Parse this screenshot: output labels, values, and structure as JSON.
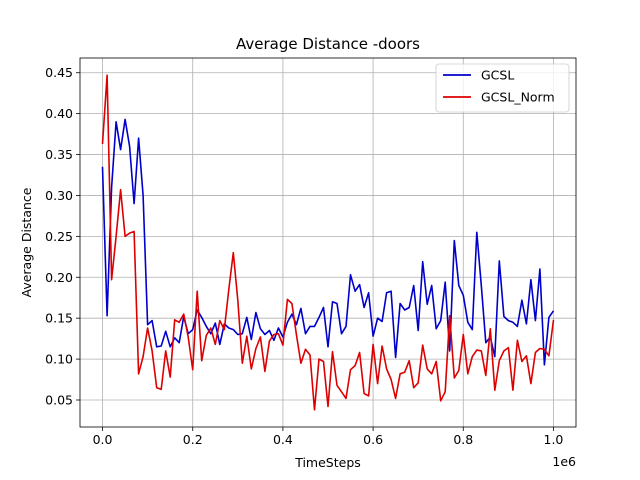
{
  "chart_data": {
    "type": "line",
    "title": "Average Distance -doors",
    "xlabel": "TimeSteps",
    "ylabel": "Average Distance",
    "x_scale_label": "1e6",
    "xlim": [
      -0.05,
      1.05
    ],
    "ylim": [
      0.017,
      0.468
    ],
    "xticks": [
      0.0,
      0.2,
      0.4,
      0.6,
      0.8,
      1.0
    ],
    "xtick_labels": [
      "0.0",
      "0.2",
      "0.4",
      "0.6",
      "0.8",
      "1.0"
    ],
    "yticks": [
      0.05,
      0.1,
      0.15,
      0.2,
      0.25,
      0.3,
      0.35,
      0.4,
      0.45
    ],
    "ytick_labels": [
      "0.05",
      "0.10",
      "0.15",
      "0.20",
      "0.25",
      "0.30",
      "0.35",
      "0.40",
      "0.45"
    ],
    "grid": true,
    "legend_position": "top-right",
    "series": [
      {
        "name": "GCSL",
        "color": "#0000cc",
        "points": [
          [
            0.0,
            0.335
          ],
          [
            0.01,
            0.153
          ],
          [
            0.02,
            0.31
          ],
          [
            0.03,
            0.39
          ],
          [
            0.04,
            0.356
          ],
          [
            0.05,
            0.393
          ],
          [
            0.06,
            0.36
          ],
          [
            0.07,
            0.29
          ],
          [
            0.08,
            0.37
          ],
          [
            0.09,
            0.3
          ],
          [
            0.1,
            0.142
          ],
          [
            0.11,
            0.147
          ],
          [
            0.12,
            0.115
          ],
          [
            0.13,
            0.116
          ],
          [
            0.14,
            0.134
          ],
          [
            0.15,
            0.115
          ],
          [
            0.16,
            0.126
          ],
          [
            0.17,
            0.12
          ],
          [
            0.18,
            0.152
          ],
          [
            0.19,
            0.131
          ],
          [
            0.2,
            0.136
          ],
          [
            0.21,
            0.16
          ],
          [
            0.22,
            0.151
          ],
          [
            0.23,
            0.14
          ],
          [
            0.24,
            0.131
          ],
          [
            0.25,
            0.144
          ],
          [
            0.26,
            0.118
          ],
          [
            0.27,
            0.143
          ],
          [
            0.28,
            0.138
          ],
          [
            0.29,
            0.136
          ],
          [
            0.3,
            0.13
          ],
          [
            0.31,
            0.131
          ],
          [
            0.32,
            0.151
          ],
          [
            0.33,
            0.124
          ],
          [
            0.34,
            0.157
          ],
          [
            0.35,
            0.137
          ],
          [
            0.36,
            0.13
          ],
          [
            0.37,
            0.135
          ],
          [
            0.38,
            0.123
          ],
          [
            0.39,
            0.138
          ],
          [
            0.4,
            0.127
          ],
          [
            0.41,
            0.145
          ],
          [
            0.42,
            0.155
          ],
          [
            0.43,
            0.142
          ],
          [
            0.44,
            0.162
          ],
          [
            0.45,
            0.131
          ],
          [
            0.46,
            0.14
          ],
          [
            0.47,
            0.14
          ],
          [
            0.48,
            0.151
          ],
          [
            0.49,
            0.163
          ],
          [
            0.5,
            0.115
          ],
          [
            0.51,
            0.17
          ],
          [
            0.52,
            0.168
          ],
          [
            0.53,
            0.131
          ],
          [
            0.54,
            0.14
          ],
          [
            0.55,
            0.203
          ],
          [
            0.56,
            0.183
          ],
          [
            0.57,
            0.191
          ],
          [
            0.58,
            0.163
          ],
          [
            0.59,
            0.181
          ],
          [
            0.6,
            0.128
          ],
          [
            0.61,
            0.15
          ],
          [
            0.62,
            0.146
          ],
          [
            0.63,
            0.181
          ],
          [
            0.64,
            0.183
          ],
          [
            0.65,
            0.102
          ],
          [
            0.66,
            0.168
          ],
          [
            0.67,
            0.16
          ],
          [
            0.68,
            0.163
          ],
          [
            0.69,
            0.19
          ],
          [
            0.7,
            0.135
          ],
          [
            0.71,
            0.219
          ],
          [
            0.72,
            0.167
          ],
          [
            0.73,
            0.19
          ],
          [
            0.74,
            0.137
          ],
          [
            0.75,
            0.147
          ],
          [
            0.76,
            0.194
          ],
          [
            0.77,
            0.11
          ],
          [
            0.78,
            0.245
          ],
          [
            0.79,
            0.19
          ],
          [
            0.8,
            0.178
          ],
          [
            0.81,
            0.145
          ],
          [
            0.82,
            0.136
          ],
          [
            0.83,
            0.255
          ],
          [
            0.84,
            0.19
          ],
          [
            0.85,
            0.12
          ],
          [
            0.86,
            0.127
          ],
          [
            0.87,
            0.103
          ],
          [
            0.88,
            0.22
          ],
          [
            0.89,
            0.152
          ],
          [
            0.9,
            0.147
          ],
          [
            0.91,
            0.145
          ],
          [
            0.92,
            0.14
          ],
          [
            0.93,
            0.172
          ],
          [
            0.94,
            0.143
          ],
          [
            0.95,
            0.197
          ],
          [
            0.96,
            0.147
          ],
          [
            0.97,
            0.21
          ],
          [
            0.98,
            0.093
          ],
          [
            0.99,
            0.151
          ],
          [
            1.0,
            0.159
          ]
        ]
      },
      {
        "name": "GCSL_Norm",
        "color": "#dd0000",
        "points": [
          [
            0.0,
            0.363
          ],
          [
            0.01,
            0.447
          ],
          [
            0.02,
            0.197
          ],
          [
            0.03,
            0.25
          ],
          [
            0.04,
            0.307
          ],
          [
            0.05,
            0.25
          ],
          [
            0.06,
            0.254
          ],
          [
            0.07,
            0.256
          ],
          [
            0.08,
            0.082
          ],
          [
            0.09,
            0.103
          ],
          [
            0.1,
            0.138
          ],
          [
            0.11,
            0.11
          ],
          [
            0.12,
            0.065
          ],
          [
            0.13,
            0.063
          ],
          [
            0.14,
            0.11
          ],
          [
            0.15,
            0.078
          ],
          [
            0.16,
            0.148
          ],
          [
            0.17,
            0.145
          ],
          [
            0.18,
            0.155
          ],
          [
            0.19,
            0.127
          ],
          [
            0.2,
            0.087
          ],
          [
            0.21,
            0.183
          ],
          [
            0.22,
            0.098
          ],
          [
            0.23,
            0.129
          ],
          [
            0.24,
            0.138
          ],
          [
            0.25,
            0.118
          ],
          [
            0.26,
            0.147
          ],
          [
            0.27,
            0.136
          ],
          [
            0.28,
            0.185
          ],
          [
            0.29,
            0.23
          ],
          [
            0.3,
            0.172
          ],
          [
            0.31,
            0.095
          ],
          [
            0.32,
            0.128
          ],
          [
            0.33,
            0.088
          ],
          [
            0.34,
            0.113
          ],
          [
            0.35,
            0.127
          ],
          [
            0.36,
            0.085
          ],
          [
            0.37,
            0.122
          ],
          [
            0.38,
            0.13
          ],
          [
            0.39,
            0.131
          ],
          [
            0.4,
            0.117
          ],
          [
            0.41,
            0.173
          ],
          [
            0.42,
            0.168
          ],
          [
            0.43,
            0.13
          ],
          [
            0.44,
            0.095
          ],
          [
            0.45,
            0.112
          ],
          [
            0.46,
            0.105
          ],
          [
            0.47,
            0.038
          ],
          [
            0.48,
            0.1
          ],
          [
            0.49,
            0.097
          ],
          [
            0.5,
            0.042
          ],
          [
            0.51,
            0.109
          ],
          [
            0.52,
            0.068
          ],
          [
            0.53,
            0.06
          ],
          [
            0.54,
            0.052
          ],
          [
            0.55,
            0.087
          ],
          [
            0.56,
            0.092
          ],
          [
            0.57,
            0.108
          ],
          [
            0.58,
            0.058
          ],
          [
            0.59,
            0.055
          ],
          [
            0.6,
            0.118
          ],
          [
            0.61,
            0.07
          ],
          [
            0.62,
            0.116
          ],
          [
            0.63,
            0.088
          ],
          [
            0.64,
            0.075
          ],
          [
            0.65,
            0.052
          ],
          [
            0.66,
            0.082
          ],
          [
            0.67,
            0.084
          ],
          [
            0.68,
            0.098
          ],
          [
            0.69,
            0.065
          ],
          [
            0.7,
            0.071
          ],
          [
            0.71,
            0.117
          ],
          [
            0.72,
            0.088
          ],
          [
            0.73,
            0.082
          ],
          [
            0.74,
            0.097
          ],
          [
            0.75,
            0.049
          ],
          [
            0.76,
            0.06
          ],
          [
            0.77,
            0.153
          ],
          [
            0.78,
            0.077
          ],
          [
            0.79,
            0.086
          ],
          [
            0.8,
            0.13
          ],
          [
            0.81,
            0.082
          ],
          [
            0.82,
            0.103
          ],
          [
            0.83,
            0.111
          ],
          [
            0.84,
            0.11
          ],
          [
            0.85,
            0.08
          ],
          [
            0.86,
            0.137
          ],
          [
            0.87,
            0.062
          ],
          [
            0.88,
            0.098
          ],
          [
            0.89,
            0.11
          ],
          [
            0.9,
            0.114
          ],
          [
            0.91,
            0.062
          ],
          [
            0.92,
            0.123
          ],
          [
            0.93,
            0.097
          ],
          [
            0.94,
            0.104
          ],
          [
            0.95,
            0.07
          ],
          [
            0.96,
            0.108
          ],
          [
            0.97,
            0.113
          ],
          [
            0.98,
            0.112
          ],
          [
            0.99,
            0.104
          ],
          [
            1.0,
            0.148
          ]
        ]
      }
    ]
  }
}
